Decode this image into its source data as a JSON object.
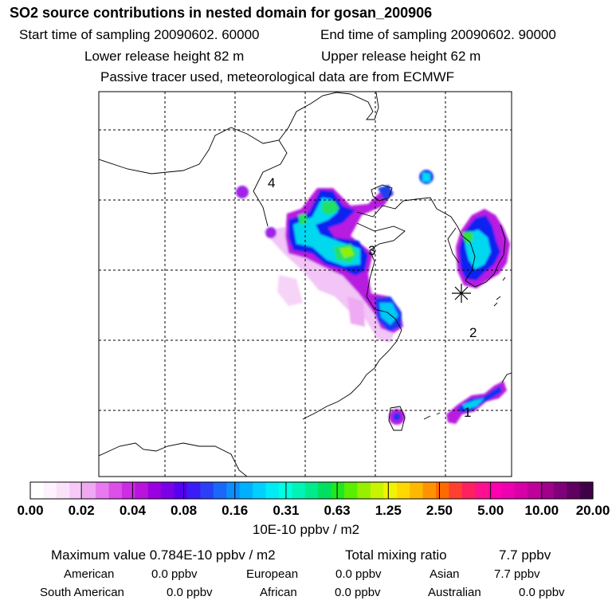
{
  "title": "SO2 source contributions in nested domain for gosan_200906",
  "header": {
    "start_label": "Start time of sampling 20090602. 60000",
    "end_label": "End time of sampling 20090602. 90000",
    "lower_label": "Lower release height   82 m",
    "upper_label": "Upper release height   62 m",
    "tracer_note": "Passive tracer used, meteorological data are from ECMWF"
  },
  "chart_data": {
    "type": "heatmap",
    "title": "SO2 source contributions in nested domain for gosan_200906",
    "map_labels": [
      {
        "text": "1",
        "name": "region-label-1"
      },
      {
        "text": "2",
        "name": "region-label-2"
      },
      {
        "text": "3",
        "name": "region-label-3"
      },
      {
        "text": "4",
        "name": "region-label-4"
      }
    ],
    "receptor_marker": "star",
    "colorbar": {
      "tick_labels": [
        "0.00",
        "0.02",
        "0.04",
        "0.08",
        "0.16",
        "0.31",
        "0.63",
        "1.25",
        "2.50",
        "5.00",
        "10.00",
        "20.00"
      ],
      "unit_label": "10E-10 ppbv / m2",
      "colors": [
        "#ffffff",
        "#fdf2fd",
        "#fae2fb",
        "#f6c9f7",
        "#f0a8f3",
        "#e77aef",
        "#dc4fe9",
        "#cc2ce3",
        "#b814dd",
        "#9a00e0",
        "#7a00e8",
        "#5500ee",
        "#3a1cf6",
        "#2a40f8",
        "#1a68fa",
        "#0a90fc",
        "#00b0ff",
        "#00d0ff",
        "#00ecf4",
        "#00ffe0",
        "#00f4b8",
        "#00ec8a",
        "#00e060",
        "#20e820",
        "#5aee00",
        "#96f000",
        "#c8f400",
        "#f0f400",
        "#ffd800",
        "#ffb800",
        "#ff9200",
        "#ff6a00",
        "#ff4030",
        "#ff2060",
        "#ff1090",
        "#ff00b0",
        "#ee00b0",
        "#d800a8",
        "#c0009a",
        "#a0008a",
        "#80007a",
        "#600060",
        "#400048"
      ]
    }
  },
  "footer": {
    "max_label": "Maximum value  0.784E-10 ppbv / m2",
    "total_label": "Total mixing ratio",
    "total_value": "7.7 ppbv",
    "regions": [
      {
        "name": "American",
        "value": "0.0 ppbv"
      },
      {
        "name": "European",
        "value": "0.0 ppbv"
      },
      {
        "name": "Asian",
        "value": "7.7 ppbv"
      },
      {
        "name": "South American",
        "value": "0.0 ppbv"
      },
      {
        "name": "African",
        "value": "0.0 ppbv"
      },
      {
        "name": "Australian",
        "value": "0.0 ppbv"
      }
    ]
  }
}
